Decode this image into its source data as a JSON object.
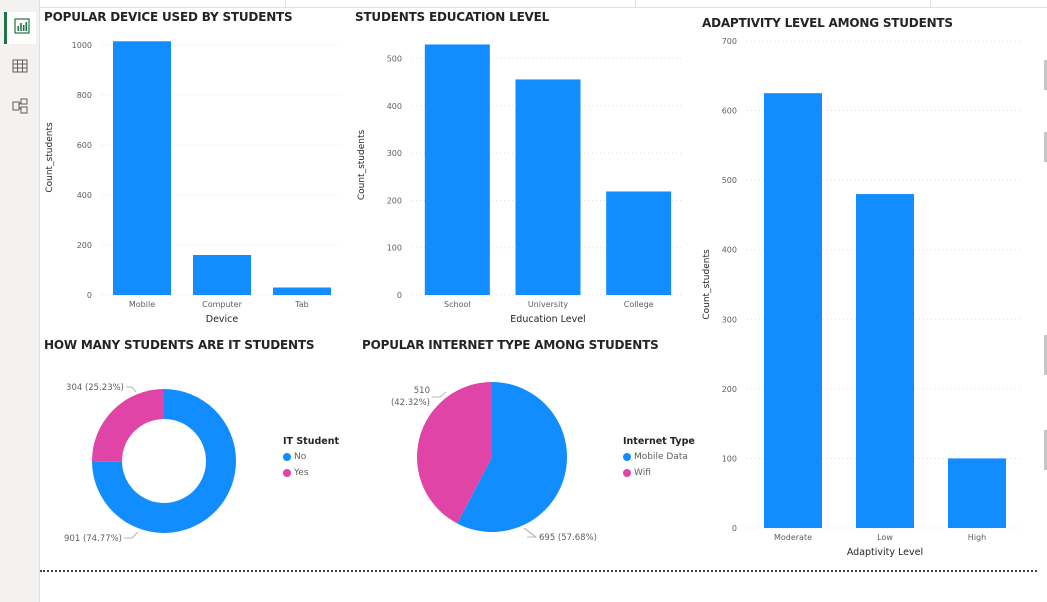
{
  "colors": {
    "blue": "#118DFF",
    "pink": "#E044A7",
    "accent": "#217346"
  },
  "rail": {
    "items": [
      {
        "icon": "report-view-icon"
      },
      {
        "icon": "table-view-icon"
      },
      {
        "icon": "model-view-icon"
      }
    ]
  },
  "charts": {
    "device": {
      "title": "POPULAR DEVICE USED BY STUDENTS",
      "ylabel": "Count_students",
      "xlabel": "Device",
      "ymax": 1100,
      "ticks": [
        0,
        200,
        400,
        600,
        800,
        1000
      ],
      "categories": [
        "Mobile",
        "Computer",
        "Tab"
      ],
      "values": [
        1015,
        160,
        30
      ]
    },
    "education": {
      "title": "STUDENTS EDUCATION LEVEL",
      "ylabel": "Count_students",
      "xlabel": "Education Level",
      "ymax": 550,
      "ticks": [
        0,
        100,
        200,
        300,
        400,
        500
      ],
      "categories": [
        "School",
        "University",
        "College"
      ],
      "values": [
        530,
        456,
        219
      ]
    },
    "adaptivity": {
      "title": "ADAPTIVITY LEVEL AMONG STUDENTS",
      "ylabel": "Count_students",
      "xlabel": "Adaptivity Level",
      "ymax": 700,
      "ticks": [
        0,
        100,
        200,
        300,
        400,
        500,
        600,
        700
      ],
      "categories": [
        "Moderate",
        "Low",
        "High"
      ],
      "values": [
        625,
        480,
        100
      ]
    },
    "it_students": {
      "title": "HOW MANY STUDENTS ARE IT STUDENTS",
      "legend_title": "IT Student",
      "legend": [
        "No",
        "Yes"
      ],
      "label_yes": "304 (25.23%)",
      "label_no": "901 (74.77%)"
    },
    "internet": {
      "title": "POPULAR INTERNET TYPE AMONG STUDENTS",
      "legend_title": "Internet Type",
      "legend": [
        "Mobile Data",
        "Wifi"
      ],
      "label_wifi_1": "510",
      "label_wifi_2": "(42.32%)",
      "label_mobile": "695 (57.68%)"
    }
  },
  "chart_data": [
    {
      "type": "bar",
      "title": "POPULAR DEVICE USED BY STUDENTS",
      "categories": [
        "Mobile",
        "Computer",
        "Tab"
      ],
      "values": [
        1015,
        160,
        30
      ],
      "xlabel": "Device",
      "ylabel": "Count_students",
      "ylim": [
        0,
        1100
      ]
    },
    {
      "type": "bar",
      "title": "STUDENTS EDUCATION LEVEL",
      "categories": [
        "School",
        "University",
        "College"
      ],
      "values": [
        530,
        456,
        219
      ],
      "xlabel": "Education Level",
      "ylabel": "Count_students",
      "ylim": [
        0,
        550
      ]
    },
    {
      "type": "bar",
      "title": "ADAPTIVITY LEVEL AMONG STUDENTS",
      "categories": [
        "Moderate",
        "Low",
        "High"
      ],
      "values": [
        625,
        480,
        100
      ],
      "xlabel": "Adaptivity Level",
      "ylabel": "Count_students",
      "ylim": [
        0,
        700
      ]
    },
    {
      "type": "pie",
      "title": "HOW MANY STUDENTS ARE IT STUDENTS",
      "categories": [
        "No",
        "Yes"
      ],
      "values": [
        901,
        304
      ],
      "percent": [
        74.77,
        25.23
      ],
      "legend_title": "IT Student",
      "donut": true
    },
    {
      "type": "pie",
      "title": "POPULAR INTERNET TYPE AMONG STUDENTS",
      "categories": [
        "Mobile Data",
        "Wifi"
      ],
      "values": [
        695,
        510
      ],
      "percent": [
        57.68,
        42.32
      ],
      "legend_title": "Internet Type"
    }
  ]
}
